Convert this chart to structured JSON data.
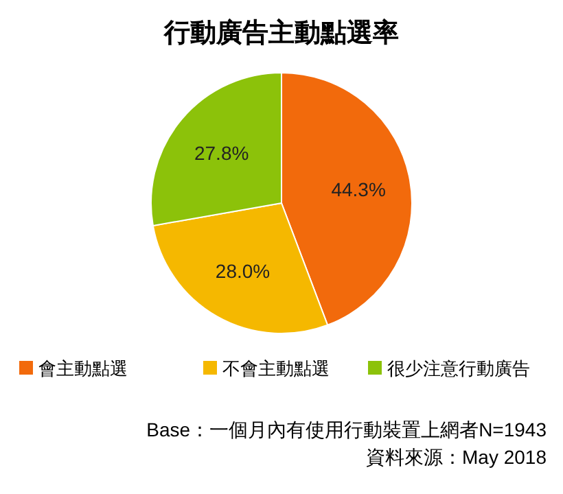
{
  "chart_data": {
    "type": "pie",
    "title": "行動廣告主動點選率",
    "categories": [
      "會主動點選",
      "不會主動點選",
      "很少注意行動廣告"
    ],
    "values": [
      44.3,
      28.0,
      27.8
    ],
    "colors": [
      "#f26a0c",
      "#f5b800",
      "#8cc20a"
    ],
    "value_labels": [
      "44.3%",
      "28.0%",
      "27.8%"
    ],
    "legend": "bottom",
    "annotations": [
      "Base：一個月內有使用行動裝置上網者N=1943",
      "資料來源：May 2018"
    ]
  }
}
